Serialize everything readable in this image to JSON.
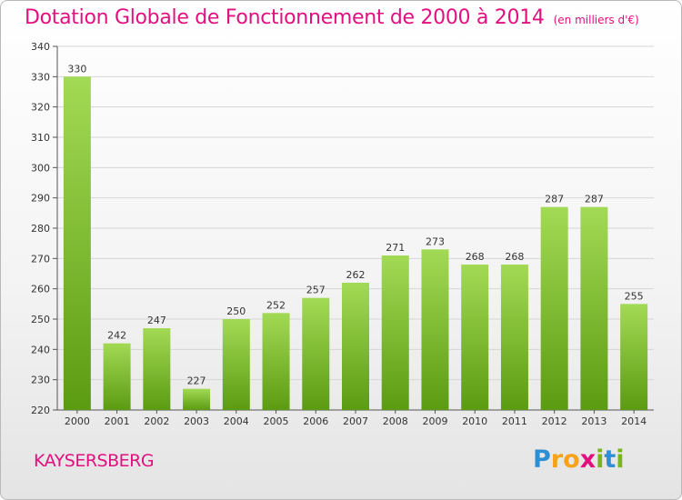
{
  "title": "Dotation Globale de Fonctionnement de 2000 à 2014",
  "subtitle": "(en milliers d'€)",
  "city": "KAYSERSBERG",
  "logo": {
    "letters": [
      "P",
      "r",
      "o",
      "x",
      "i",
      "t",
      "i"
    ],
    "colors": [
      "#2f8fd3",
      "#f7a21b",
      "#f7a21b",
      "#e2107f",
      "#7ab51d",
      "#2f8fd3",
      "#7ab51d"
    ]
  },
  "colors": {
    "accent": "#e2107f",
    "bar_light": "#9fd752",
    "bar_dark": "#5e9e14"
  },
  "chart_data": {
    "type": "bar",
    "title": "Dotation Globale de Fonctionnement de 2000 à 2014",
    "subtitle": "(en milliers d'€)",
    "categories": [
      "2000",
      "2001",
      "2002",
      "2003",
      "2004",
      "2005",
      "2006",
      "2007",
      "2008",
      "2009",
      "2010",
      "2011",
      "2012",
      "2013",
      "2014"
    ],
    "values": [
      330,
      242,
      247,
      227,
      250,
      252,
      257,
      262,
      271,
      273,
      268,
      268,
      287,
      287,
      255
    ],
    "ylim": [
      220,
      340
    ],
    "yticks": [
      220,
      230,
      240,
      250,
      260,
      270,
      280,
      290,
      300,
      310,
      320,
      330,
      340
    ],
    "grid": true,
    "xlabel": "",
    "ylabel": ""
  }
}
